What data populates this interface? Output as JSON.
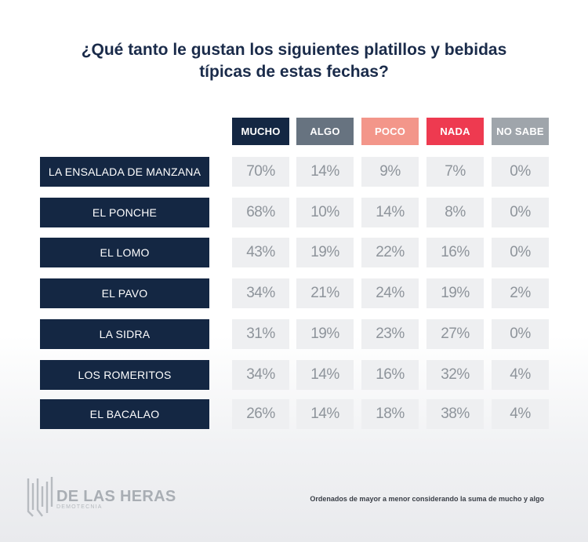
{
  "title_lines": [
    "¿Qué tanto le gustan los siguientes platillos y bebidas",
    "típicas de estas fechas?"
  ],
  "chart_data": {
    "type": "table",
    "title": "¿Qué tanto le gustan los siguientes platillos y bebidas típicas de estas fechas?",
    "columns": [
      {
        "label": "MUCHO",
        "color": "#142743"
      },
      {
        "label": "ALGO",
        "color": "#677380"
      },
      {
        "label": "POCO",
        "color": "#f3968a"
      },
      {
        "label": "NADA",
        "color": "#ee3a50"
      },
      {
        "label": "NO SABE",
        "color": "#9fa5ab"
      }
    ],
    "rows": [
      {
        "label": "LA ENSALADA DE MANZANA",
        "values": [
          "70%",
          "14%",
          "9%",
          "7%",
          "0%"
        ]
      },
      {
        "label": "EL PONCHE",
        "values": [
          "68%",
          "10%",
          "14%",
          "8%",
          "0%"
        ]
      },
      {
        "label": "EL LOMO",
        "values": [
          "43%",
          "19%",
          "22%",
          "16%",
          "0%"
        ]
      },
      {
        "label": "EL PAVO",
        "values": [
          "34%",
          "21%",
          "24%",
          "19%",
          "2%"
        ]
      },
      {
        "label": "LA SIDRA",
        "values": [
          "31%",
          "19%",
          "23%",
          "27%",
          "0%"
        ]
      },
      {
        "label": "LOS ROMERITOS",
        "values": [
          "34%",
          "14%",
          "16%",
          "32%",
          "4%"
        ]
      },
      {
        "label": "EL BACALAO",
        "values": [
          "26%",
          "14%",
          "18%",
          "38%",
          "4%"
        ]
      }
    ]
  },
  "brand": {
    "name": "DE LAS HERAS",
    "sub": "DEMOTECNIA"
  },
  "footnote": "Ordenados de mayor a menor considerando la suma de mucho y algo"
}
